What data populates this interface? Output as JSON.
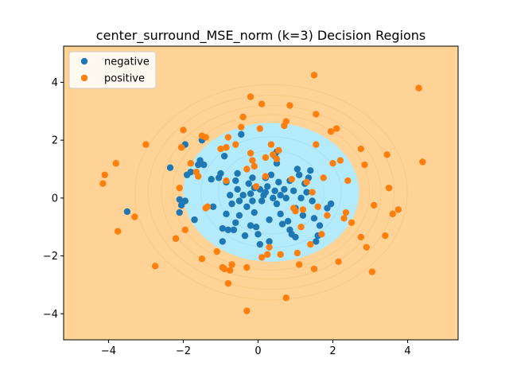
{
  "chart_data": {
    "type": "scatter",
    "title": "center_surround_MSE_norm (k=3) Decision Regions",
    "xlabel": "",
    "ylabel": "",
    "xlim": [
      -5.2,
      5.35
    ],
    "ylim": [
      -4.9,
      5.25
    ],
    "xticks": [
      -4,
      -2,
      0,
      2,
      4
    ],
    "yticks": [
      -4,
      -2,
      0,
      2,
      4
    ],
    "xtick_labels": [
      "−4",
      "−2",
      "0",
      "2",
      "4"
    ],
    "ytick_labels": [
      "−4",
      "−2",
      "0",
      "2",
      "4"
    ],
    "grid": false,
    "legend_position": "top-left",
    "background_color": "#fed395",
    "region": {
      "label": "negative",
      "color": "#b3ebfd",
      "center": [
        0.35,
        0.2
      ],
      "radius_x": 2.35,
      "radius_y": 2.4
    },
    "series": [
      {
        "name": "negative",
        "color": "#1f77b4",
        "points": [
          [
            -3.5,
            -0.47
          ],
          [
            -2.35,
            1.05
          ],
          [
            -2.1,
            -0.05
          ],
          [
            -2.05,
            -0.25
          ],
          [
            -2.1,
            -0.5
          ],
          [
            -1.95,
            -0.1
          ],
          [
            -1.95,
            1.85
          ],
          [
            -1.9,
            0.8
          ],
          [
            -1.8,
            0.9
          ],
          [
            -1.7,
            -0.75
          ],
          [
            -1.6,
            1.15
          ],
          [
            -1.55,
            1.3
          ],
          [
            -1.5,
            2.0
          ],
          [
            -1.45,
            1.15
          ],
          [
            -1.2,
            -0.3
          ],
          [
            -1.05,
            0.7
          ],
          [
            -1.0,
            0.85
          ],
          [
            -0.95,
            -1.05
          ],
          [
            -0.95,
            -1.5
          ],
          [
            -0.9,
            1.45
          ],
          [
            -0.85,
            -0.55
          ],
          [
            -0.85,
            0.55
          ],
          [
            -0.8,
            -1.1
          ],
          [
            -0.75,
            0.1
          ],
          [
            -0.7,
            -0.2
          ],
          [
            -0.65,
            -1.1
          ],
          [
            -0.6,
            0.6
          ],
          [
            -0.55,
            0.85
          ],
          [
            -0.55,
            0.3
          ],
          [
            -0.5,
            -0.1
          ],
          [
            -0.5,
            -0.6
          ],
          [
            -0.45,
            2.2
          ],
          [
            -0.4,
            0.1
          ],
          [
            -0.35,
            -1.3
          ],
          [
            -0.3,
            -0.3
          ],
          [
            -0.25,
            0.5
          ],
          [
            -0.2,
            0.15
          ],
          [
            -0.15,
            -0.1
          ],
          [
            -0.1,
            -0.5
          ],
          [
            -0.05,
            -1.0
          ],
          [
            0.0,
            -1.25
          ],
          [
            0.05,
            0.3
          ],
          [
            0.1,
            -0.1
          ],
          [
            0.15,
            0.1
          ],
          [
            0.2,
            0.7
          ],
          [
            0.25,
            0.4
          ],
          [
            0.3,
            -1.5
          ],
          [
            0.3,
            -0.75
          ],
          [
            0.35,
            0.8
          ],
          [
            0.4,
            0.0
          ],
          [
            0.45,
            0.25
          ],
          [
            0.5,
            1.6
          ],
          [
            0.5,
            -0.2
          ],
          [
            0.55,
            0.55
          ],
          [
            0.6,
            -0.55
          ],
          [
            0.65,
            -0.9
          ],
          [
            0.7,
            0.3
          ],
          [
            0.75,
            0.0
          ],
          [
            0.8,
            -0.8
          ],
          [
            0.85,
            0.6
          ],
          [
            0.9,
            -1.25
          ],
          [
            0.95,
            0.25
          ],
          [
            1.0,
            -0.35
          ],
          [
            1.05,
            1.0
          ],
          [
            1.1,
            0.8
          ],
          [
            1.15,
            0.0
          ],
          [
            1.2,
            -0.6
          ],
          [
            1.25,
            0.5
          ],
          [
            1.3,
            0.2
          ],
          [
            1.35,
            0.7
          ],
          [
            1.4,
            0.95
          ],
          [
            1.45,
            -0.1
          ],
          [
            1.5,
            -0.7
          ],
          [
            1.55,
            -1.5
          ],
          [
            1.6,
            -1.3
          ],
          [
            1.65,
            -0.95
          ],
          [
            1.85,
            -0.35
          ],
          [
            1.95,
            -0.2
          ],
          [
            0.45,
            1.45
          ],
          [
            0.2,
            0.2
          ],
          [
            -0.1,
            0.35
          ],
          [
            -1.25,
            0.65
          ],
          [
            0.85,
            -1.1
          ],
          [
            -0.2,
            -0.95
          ],
          [
            1.0,
            -1.35
          ],
          [
            -0.6,
            -0.85
          ],
          [
            0.05,
            -1.6
          ],
          [
            0.5,
            1.2
          ],
          [
            -0.15,
            0.7
          ],
          [
            0.6,
            0.1
          ]
        ]
      },
      {
        "name": "positive",
        "color": "#ff7f0e",
        "points": [
          [
            -4.15,
            0.5
          ],
          [
            -4.1,
            0.8
          ],
          [
            -3.8,
            1.2
          ],
          [
            -3.75,
            -1.15
          ],
          [
            -3.3,
            -0.65
          ],
          [
            -3.0,
            1.85
          ],
          [
            -2.75,
            -2.35
          ],
          [
            -2.2,
            -1.4
          ],
          [
            -2.1,
            0.35
          ],
          [
            -2.05,
            1.75
          ],
          [
            -2.0,
            2.35
          ],
          [
            -1.95,
            -1.1
          ],
          [
            -1.8,
            1.2
          ],
          [
            -1.65,
            0.9
          ],
          [
            -1.6,
            0.75
          ],
          [
            -1.5,
            2.15
          ],
          [
            -1.5,
            -2.1
          ],
          [
            -1.4,
            -0.35
          ],
          [
            -1.4,
            2.1
          ],
          [
            -1.1,
            -1.85
          ],
          [
            -1.0,
            1.7
          ],
          [
            -0.95,
            -2.4
          ],
          [
            -0.9,
            -2.45
          ],
          [
            -0.85,
            1.75
          ],
          [
            -0.85,
            0.6
          ],
          [
            -0.8,
            2.1
          ],
          [
            -0.75,
            -2.5
          ],
          [
            -0.7,
            -2.3
          ],
          [
            -0.6,
            1.85
          ],
          [
            -0.45,
            2.45
          ],
          [
            -0.4,
            2.8
          ],
          [
            -0.3,
            -2.4
          ],
          [
            -0.2,
            3.5
          ],
          [
            -0.2,
            1.55
          ],
          [
            -0.15,
            1.3
          ],
          [
            -0.1,
            1.1
          ],
          [
            -0.05,
            0.4
          ],
          [
            0.05,
            2.4
          ],
          [
            0.1,
            3.25
          ],
          [
            0.1,
            -2.05
          ],
          [
            0.2,
            1.4
          ],
          [
            0.25,
            -1.95
          ],
          [
            0.3,
            -1.7
          ],
          [
            0.35,
            1.85
          ],
          [
            0.4,
            1.5
          ],
          [
            0.5,
            1.35
          ],
          [
            0.55,
            1.65
          ],
          [
            0.6,
            -1.95
          ],
          [
            0.7,
            2.5
          ],
          [
            0.75,
            2.65
          ],
          [
            0.85,
            3.2
          ],
          [
            0.9,
            0.65
          ],
          [
            0.95,
            -0.35
          ],
          [
            1.0,
            -0.45
          ],
          [
            1.05,
            -1.9
          ],
          [
            1.1,
            -2.3
          ],
          [
            1.15,
            -1.0
          ],
          [
            1.2,
            -0.4
          ],
          [
            1.3,
            0.55
          ],
          [
            1.4,
            -1.6
          ],
          [
            1.45,
            0.2
          ],
          [
            1.5,
            4.25
          ],
          [
            1.55,
            2.9
          ],
          [
            1.6,
            -0.3
          ],
          [
            1.7,
            -1.25
          ],
          [
            1.75,
            0.7
          ],
          [
            1.85,
            -0.6
          ],
          [
            1.95,
            2.3
          ],
          [
            2.0,
            1.2
          ],
          [
            2.1,
            2.4
          ],
          [
            2.15,
            -2.2
          ],
          [
            2.2,
            1.3
          ],
          [
            2.3,
            -0.7
          ],
          [
            2.35,
            -0.5
          ],
          [
            2.4,
            0.6
          ],
          [
            2.5,
            -0.85
          ],
          [
            2.75,
            1.7
          ],
          [
            2.75,
            -1.35
          ],
          [
            2.85,
            1.15
          ],
          [
            2.9,
            -1.7
          ],
          [
            3.05,
            -2.55
          ],
          [
            3.1,
            -0.25
          ],
          [
            3.4,
            -1.3
          ],
          [
            3.45,
            1.5
          ],
          [
            3.5,
            0.35
          ],
          [
            3.6,
            -0.55
          ],
          [
            3.75,
            -0.4
          ],
          [
            4.3,
            3.8
          ],
          [
            4.4,
            1.25
          ],
          [
            -0.3,
            -3.9
          ],
          [
            0.75,
            -3.45
          ],
          [
            -0.8,
            -2.95
          ],
          [
            1.55,
            1.85
          ],
          [
            1.5,
            -2.45
          ],
          [
            -1.35,
            -0.3
          ],
          [
            -0.3,
            1.0
          ],
          [
            0.2,
            0.75
          ]
        ]
      }
    ]
  }
}
